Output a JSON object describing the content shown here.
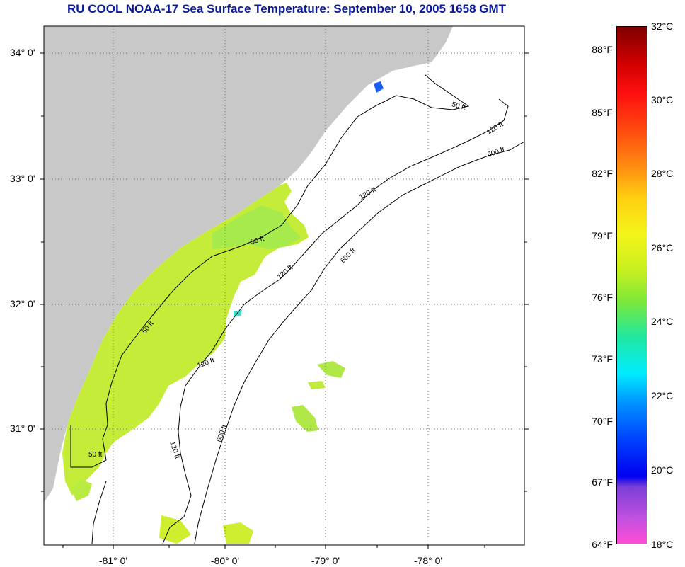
{
  "title": "RU COOL  NOAA-17  Sea Surface Temperature:  September 10, 2005 1658 GMT",
  "latitude_labels": [
    "34° 0'",
    "33° 0'",
    "32° 0'",
    "31° 0'"
  ],
  "longitude_labels": [
    "-81° 0'",
    "-80° 0'",
    "-79° 0'",
    "-78° 0'"
  ],
  "contour_labels": [
    "50 ft",
    "50 ft",
    "50 ft",
    "50 ft",
    "120 ft",
    "120 ft",
    "120 ft",
    "120 ft",
    "120 ft",
    "600 ft",
    "600 ft",
    "600 ft"
  ],
  "colorbar": {
    "fahrenheit": [
      "88°F",
      "85°F",
      "82°F",
      "79°F",
      "76°F",
      "73°F",
      "70°F",
      "67°F",
      "64°F"
    ],
    "celsius": [
      "32°C",
      "30°C",
      "28°C",
      "26°C",
      "24°C",
      "22°C",
      "20°C",
      "18°C"
    ]
  },
  "colors": {
    "title": "#0a1a9c",
    "land": "#c8c8c8",
    "ocean_no_data": "#ffffff",
    "sst_dominant": "#c6ec3a"
  }
}
